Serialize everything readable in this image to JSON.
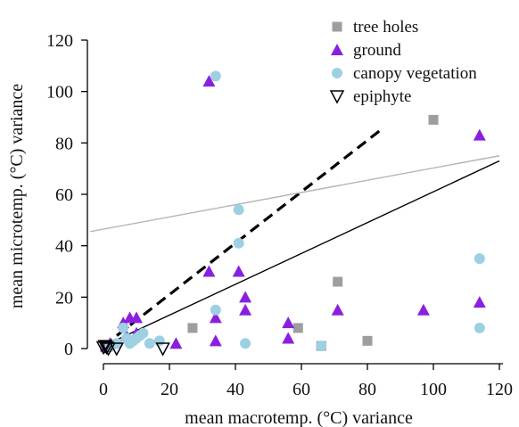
{
  "chart_data": {
    "type": "scatter",
    "title": "",
    "xlabel": "mean macrotemp. (°C) variance",
    "ylabel": "mean microtemp. (°C) variance",
    "xlim": [
      0,
      120
    ],
    "ylim": [
      0,
      120
    ],
    "xticks": [
      "0",
      "20",
      "40",
      "60",
      "80",
      "100",
      "120"
    ],
    "yticks": [
      "0",
      "20",
      "40",
      "60",
      "80",
      "100",
      "120"
    ],
    "grid": false,
    "legend_position": "top-right",
    "series": [
      {
        "name": "tree holes",
        "marker": "square",
        "color": "#9e9e9e",
        "points": [
          [
            0.5,
            0.5
          ],
          [
            1,
            0.5
          ],
          [
            1.5,
            1
          ],
          [
            27,
            8
          ],
          [
            59,
            8
          ],
          [
            66,
            1
          ],
          [
            71,
            26
          ],
          [
            80,
            3
          ],
          [
            100,
            89
          ]
        ]
      },
      {
        "name": "ground",
        "marker": "triangle-up",
        "color": "#8a1fe0",
        "points": [
          [
            1,
            1
          ],
          [
            2,
            2
          ],
          [
            6,
            10
          ],
          [
            7,
            5
          ],
          [
            8,
            12
          ],
          [
            10,
            12
          ],
          [
            10,
            6
          ],
          [
            22,
            2
          ],
          [
            32,
            104
          ],
          [
            32,
            30
          ],
          [
            34,
            12
          ],
          [
            34,
            3
          ],
          [
            41,
            30
          ],
          [
            43,
            20
          ],
          [
            43,
            15
          ],
          [
            56,
            10
          ],
          [
            56,
            4
          ],
          [
            71,
            15
          ],
          [
            97,
            15
          ],
          [
            114,
            83
          ],
          [
            114,
            18
          ]
        ]
      },
      {
        "name": "canopy vegetation",
        "marker": "circle",
        "color": "#9dd0e2",
        "points": [
          [
            2,
            1
          ],
          [
            4,
            2
          ],
          [
            6,
            8
          ],
          [
            7,
            4
          ],
          [
            8,
            2
          ],
          [
            9,
            3
          ],
          [
            10,
            4
          ],
          [
            11,
            5
          ],
          [
            12,
            6
          ],
          [
            14,
            2
          ],
          [
            17,
            3
          ],
          [
            34,
            106
          ],
          [
            34,
            15
          ],
          [
            41,
            54
          ],
          [
            41,
            41
          ],
          [
            43,
            2
          ],
          [
            66,
            1
          ],
          [
            114,
            35
          ],
          [
            114,
            8
          ]
        ]
      },
      {
        "name": "epiphyte",
        "marker": "triangle-down",
        "color": "#000000",
        "points": [
          [
            0,
            0.5
          ],
          [
            0.5,
            1
          ],
          [
            1,
            0.5
          ],
          [
            1.5,
            0
          ],
          [
            4,
            0
          ],
          [
            18,
            0
          ]
        ]
      }
    ],
    "lines": [
      {
        "style": "solid",
        "color": "#000000",
        "x": [
          0,
          120
        ],
        "y": [
          1,
          73
        ]
      },
      {
        "style": "dashed",
        "color": "#000000",
        "x": [
          0,
          84
        ],
        "y": [
          1,
          85
        ]
      },
      {
        "style": "solid",
        "color": "#b5b5b5",
        "x": [
          -4,
          120
        ],
        "y": [
          45.5,
          75
        ]
      }
    ]
  }
}
